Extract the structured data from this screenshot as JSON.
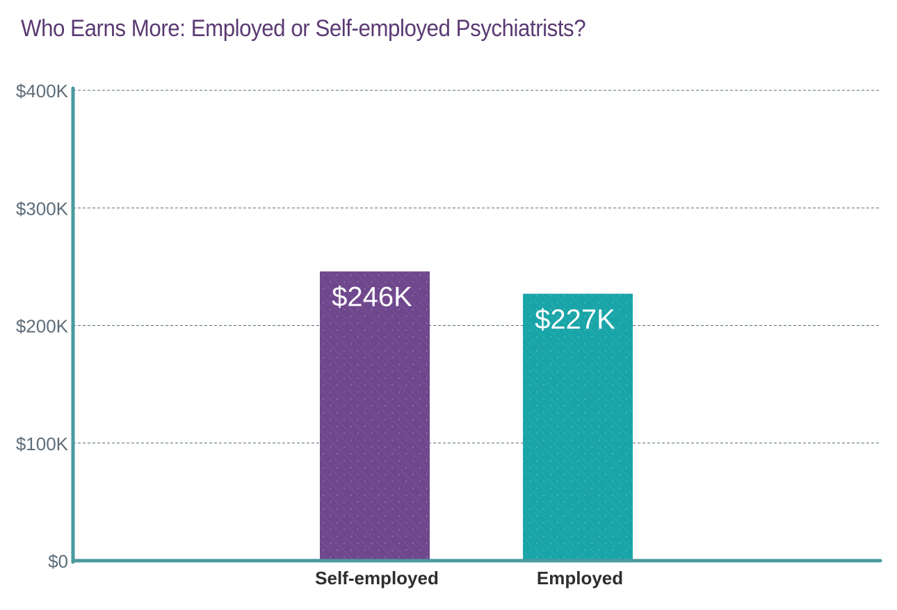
{
  "title": "Who Earns More: Employed or Self-employed Psychiatrists?",
  "colors": {
    "title": "#5b3a73",
    "axis": "#4a9aa0",
    "grid": "#4f6b7a",
    "tick_text": "#5d6d7a",
    "category_text": "#2e2e2e",
    "data_label_text": "#ffffff"
  },
  "chart_data": {
    "type": "bar",
    "categories": [
      "Self-employed",
      "Employed"
    ],
    "values": [
      246,
      227
    ],
    "data_labels": [
      "$246K",
      "$227K"
    ],
    "bar_colors": [
      "#6f478d",
      "#19a5a8"
    ],
    "ylim": [
      0,
      400
    ],
    "yticks": [
      0,
      100,
      200,
      300,
      400
    ],
    "ytick_labels": [
      "$0",
      "$100K",
      "$200K",
      "$300K",
      "$400K"
    ],
    "grid": true,
    "xlabel": "",
    "ylabel": ""
  }
}
